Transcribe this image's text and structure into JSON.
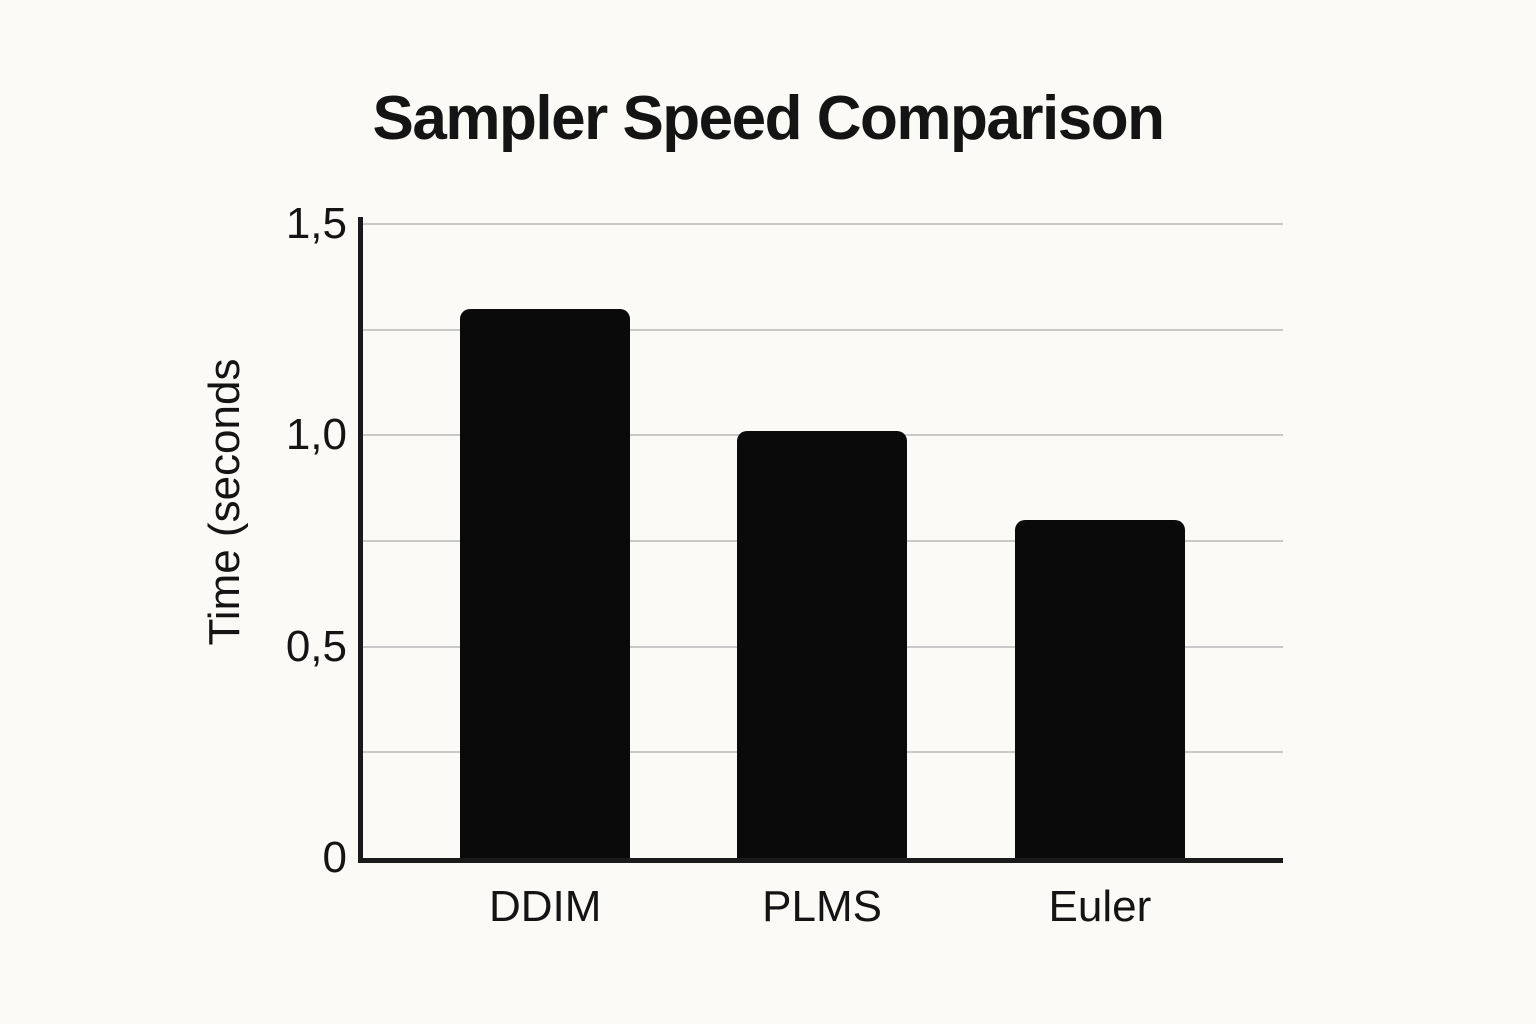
{
  "chart_data": {
    "type": "bar",
    "title": "Sampler Speed Comparison",
    "categories": [
      "DDIM",
      "PLMS",
      "Euler"
    ],
    "values": [
      1.3,
      1.01,
      0.8
    ],
    "xlabel": "",
    "ylabel": "Time (seconds",
    "ylim": [
      0,
      1.5
    ],
    "ytick_step": 0.5,
    "ytick_labels": [
      "0",
      "0,5",
      "1,0",
      "1,5"
    ],
    "decimal_separator": ",",
    "grid": true,
    "grid_step": 0.25,
    "legend": false,
    "colors": {
      "background": "#fbfaf7",
      "bar": "#0a0a0a",
      "gridline": "#c9c9c9",
      "axis": "#1a1a1a",
      "text": "#141414"
    }
  }
}
